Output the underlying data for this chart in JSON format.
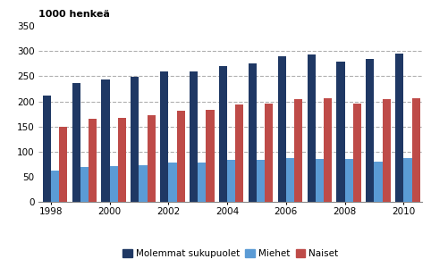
{
  "years": [
    1998,
    1999,
    2000,
    2001,
    2002,
    2003,
    2004,
    2005,
    2006,
    2007,
    2008,
    2009,
    2010
  ],
  "molemmat": [
    212,
    236,
    244,
    248,
    259,
    259,
    271,
    275,
    290,
    294,
    279,
    284,
    295
  ],
  "miehet": [
    62,
    70,
    72,
    74,
    79,
    79,
    84,
    83,
    87,
    86,
    85,
    81,
    87
  ],
  "naiset": [
    150,
    165,
    168,
    172,
    181,
    183,
    193,
    195,
    204,
    207,
    196,
    204,
    207
  ],
  "colors": {
    "molemmat": "#1F3864",
    "miehet": "#5B9BD5",
    "naiset": "#BE4B48"
  },
  "ylabel": "1000 henkeä",
  "ylim": [
    0,
    350
  ],
  "yticks": [
    0,
    50,
    100,
    150,
    200,
    250,
    300,
    350
  ],
  "grid_yticks": [
    100,
    150,
    200,
    250,
    300
  ],
  "legend_labels": [
    "Molemmat sukupuolet",
    "Miehet",
    "Naiset"
  ],
  "bar_width": 0.28,
  "background_color": "#ffffff",
  "grid_color": "#b0b0b0",
  "ylabel_fontsize": 8,
  "axis_fontsize": 7.5,
  "legend_fontsize": 7.5
}
